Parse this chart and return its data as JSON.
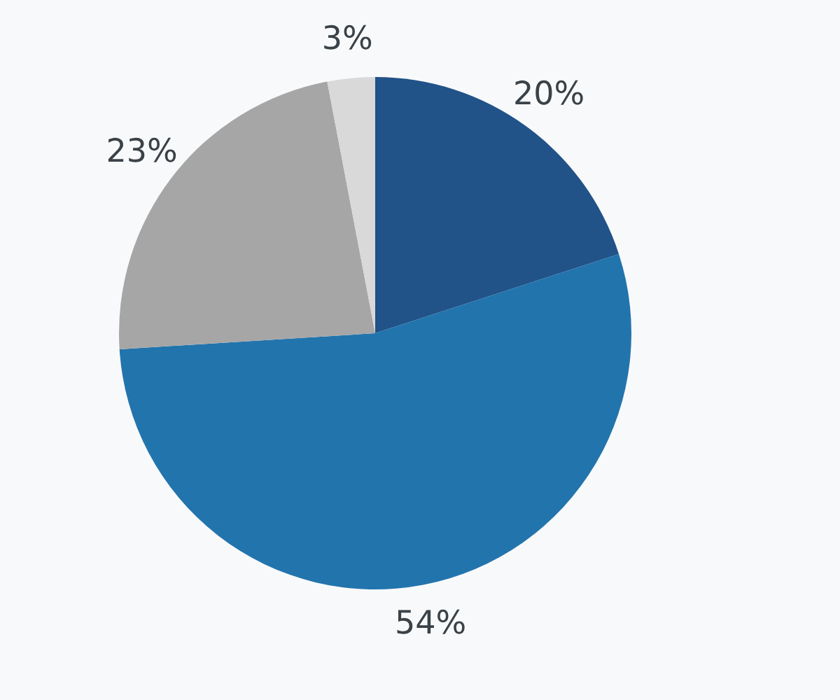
{
  "chart_data": {
    "type": "pie",
    "categories": [
      null,
      null,
      null,
      null
    ],
    "values": [
      20,
      54,
      23,
      3
    ],
    "colors": [
      "#215288",
      "#2274ad",
      "#a6a6a6",
      "#d9d9d9"
    ],
    "value_labels": [
      "20%",
      "54%",
      "23%",
      "3%"
    ]
  }
}
